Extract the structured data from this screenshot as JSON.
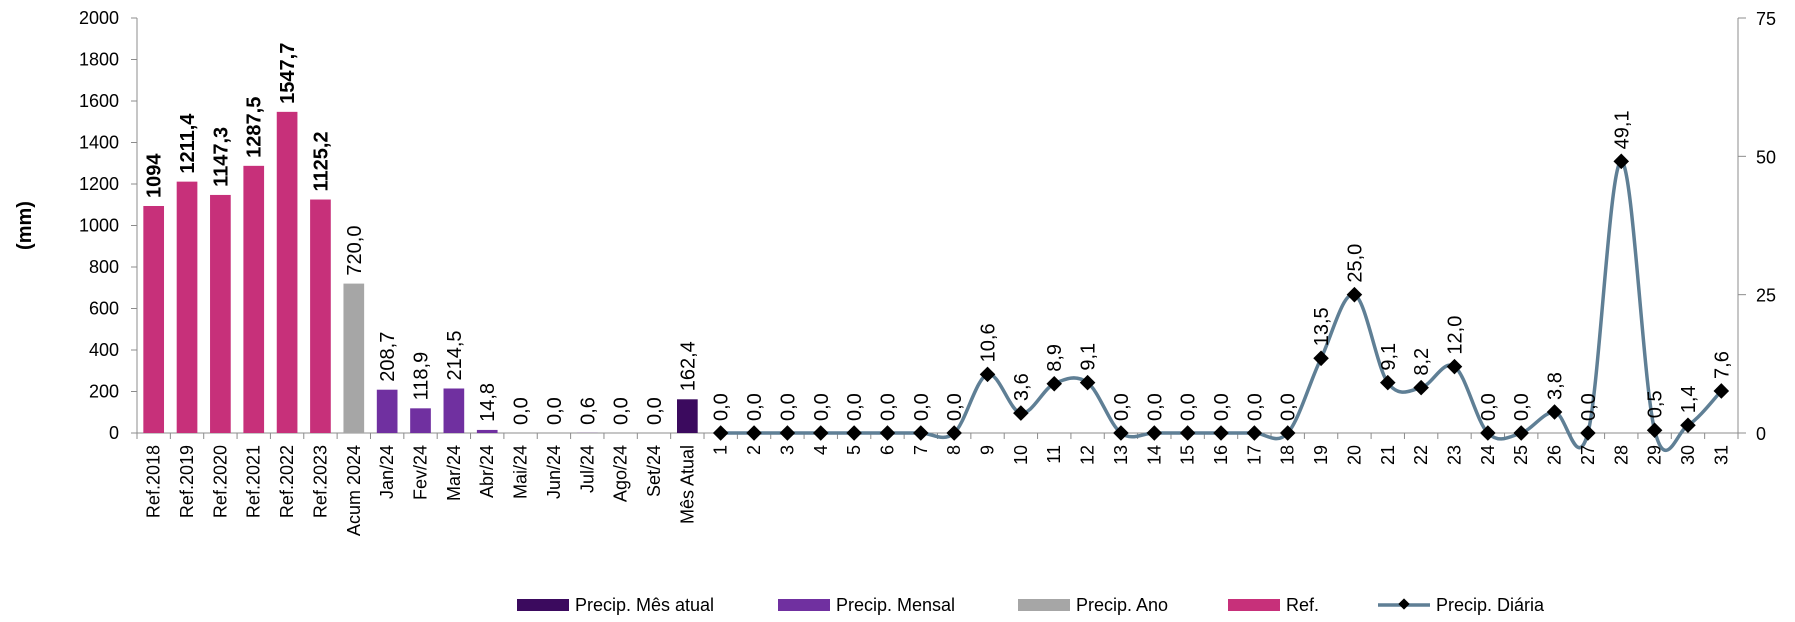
{
  "chart_data": {
    "type": "bar+line",
    "ylabel": "(mm)",
    "y_left": {
      "min": 0,
      "max": 2000,
      "ticks": [
        "0",
        "200",
        "400",
        "600",
        "800",
        "1000",
        "1200",
        "1400",
        "1600",
        "1800",
        "2000"
      ]
    },
    "y_right": {
      "min": 0,
      "max": 75,
      "ticks": [
        "0",
        "25",
        "50",
        "75"
      ]
    },
    "grid": false,
    "legend_position": "bottom",
    "bars": [
      {
        "category": "Ref.2018",
        "value": 1094,
        "label": "1094",
        "series": "Ref."
      },
      {
        "category": "Ref.2019",
        "value": 1211.4,
        "label": "1211,4",
        "series": "Ref."
      },
      {
        "category": "Ref.2020",
        "value": 1147.3,
        "label": "1147,3",
        "series": "Ref."
      },
      {
        "category": "Ref.2021",
        "value": 1287.5,
        "label": "1287,5",
        "series": "Ref."
      },
      {
        "category": "Ref.2022",
        "value": 1547.7,
        "label": "1547,7",
        "series": "Ref."
      },
      {
        "category": "Ref.2023",
        "value": 1125.2,
        "label": "1125,2",
        "series": "Ref."
      },
      {
        "category": "Acum 2024",
        "value": 720.0,
        "label": "720,0",
        "series": "Precip. Ano"
      },
      {
        "category": "Jan/24",
        "value": 208.7,
        "label": "208,7",
        "series": "Precip. Mensal"
      },
      {
        "category": "Fev/24",
        "value": 118.9,
        "label": "118,9",
        "series": "Precip. Mensal"
      },
      {
        "category": "Mar/24",
        "value": 214.5,
        "label": "214,5",
        "series": "Precip. Mensal"
      },
      {
        "category": "Abr/24",
        "value": 14.8,
        "label": "14,8",
        "series": "Precip. Mensal"
      },
      {
        "category": "Mai/24",
        "value": 0.0,
        "label": "0,0",
        "series": "Precip. Mensal"
      },
      {
        "category": "Jun/24",
        "value": 0.0,
        "label": "0,0",
        "series": "Precip. Mensal"
      },
      {
        "category": "Jul/24",
        "value": 0.6,
        "label": "0,6",
        "series": "Precip. Mensal"
      },
      {
        "category": "Ago/24",
        "value": 0.0,
        "label": "0,0",
        "series": "Precip. Mensal"
      },
      {
        "category": "Set/24",
        "value": 0.0,
        "label": "0,0",
        "series": "Precip. Mensal"
      },
      {
        "category": "Mês Atual",
        "value": 162.4,
        "label": "162,4",
        "series": "Precip. Mês atual"
      }
    ],
    "daily": {
      "series": "Precip. Diária",
      "axis": "right",
      "days": [
        "1",
        "2",
        "3",
        "4",
        "5",
        "6",
        "7",
        "8",
        "9",
        "10",
        "11",
        "12",
        "13",
        "14",
        "15",
        "16",
        "17",
        "18",
        "19",
        "20",
        "21",
        "22",
        "23",
        "24",
        "25",
        "26",
        "27",
        "28",
        "29",
        "30",
        "31"
      ],
      "values": [
        0,
        0,
        0,
        0,
        0,
        0,
        0,
        0,
        10.6,
        3.6,
        8.9,
        9.1,
        0,
        0,
        0,
        0,
        0,
        0,
        13.5,
        25.0,
        9.1,
        8.2,
        12.0,
        0,
        0,
        3.8,
        0,
        49.1,
        0.5,
        1.4,
        7.6
      ],
      "labels": [
        "0,0",
        "0,0",
        "0,0",
        "0,0",
        "0,0",
        "0,0",
        "0,0",
        "0,0",
        "10,6",
        "3,6",
        "8,9",
        "9,1",
        "0,0",
        "0,0",
        "0,0",
        "0,0",
        "0,0",
        "0,0",
        "13,5",
        "25,0",
        "9,1",
        "8,2",
        "12,0",
        "0,0",
        "0,0",
        "3,8",
        "0,0",
        "49,1",
        "0,5",
        "1,4",
        "7,6"
      ]
    },
    "legend": [
      {
        "name": "Precip. Mês atual",
        "color": "#3b0a5e",
        "kind": "bar"
      },
      {
        "name": "Precip. Mensal",
        "color": "#7030a0",
        "kind": "bar"
      },
      {
        "name": "Precip. Ano",
        "color": "#a6a6a6",
        "kind": "bar"
      },
      {
        "name": "Ref.",
        "color": "#c7307a",
        "kind": "bar"
      },
      {
        "name": "Precip. Diária",
        "color": "#5f7f95",
        "kind": "line"
      }
    ]
  }
}
